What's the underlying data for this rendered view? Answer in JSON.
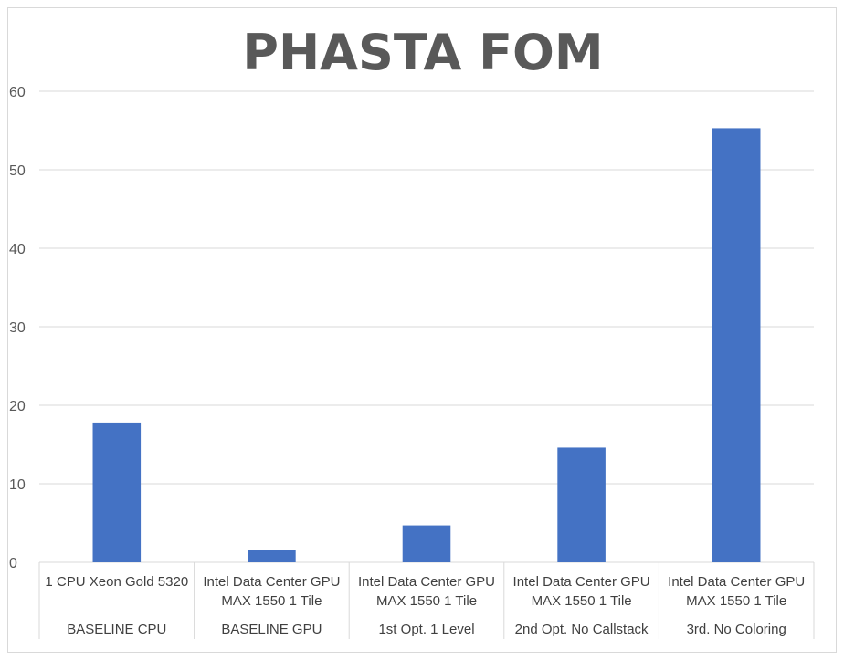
{
  "chart_data": {
    "type": "bar",
    "title": "PHASTA FOM",
    "xlabel": "",
    "ylabel": "",
    "ylim": [
      0,
      60
    ],
    "yticks": [
      0,
      10,
      20,
      30,
      40,
      50,
      60
    ],
    "grid": true,
    "legend": "none",
    "bar_color": "#4472C4",
    "categories": [
      {
        "label_lines": [
          "1 CPU Xeon Gold 5320"
        ],
        "group": "BASELINE CPU"
      },
      {
        "label_lines": [
          "Intel Data Center GPU",
          "MAX 1550 1 Tile"
        ],
        "group": "BASELINE GPU"
      },
      {
        "label_lines": [
          "Intel Data Center GPU",
          "MAX 1550 1 Tile"
        ],
        "group": "1st Opt. 1 Level"
      },
      {
        "label_lines": [
          "Intel Data Center GPU",
          "MAX 1550 1 Tile"
        ],
        "group": "2nd Opt. No Callstack"
      },
      {
        "label_lines": [
          "Intel Data Center GPU",
          "MAX 1550 1 Tile"
        ],
        "group": "3rd. No Coloring"
      }
    ],
    "values": [
      17.8,
      1.6,
      4.7,
      14.6,
      55.3
    ]
  }
}
